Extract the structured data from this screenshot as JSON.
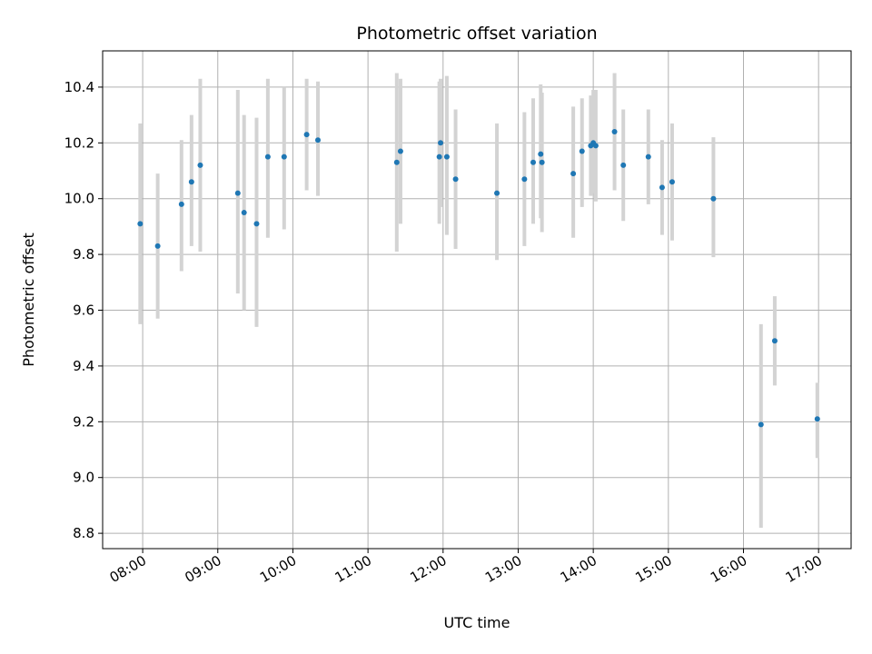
{
  "chart_data": {
    "type": "scatter",
    "title": "Photometric offset variation",
    "xlabel": "UTC time",
    "ylabel": "Photometric offset",
    "xlim": [
      "07:28",
      "17:26"
    ],
    "ylim": [
      8.745,
      10.53
    ],
    "x_ticks": [
      "08:00",
      "09:00",
      "10:00",
      "11:00",
      "12:00",
      "13:00",
      "14:00",
      "15:00",
      "16:00",
      "17:00"
    ],
    "y_ticks": [
      8.8,
      9.0,
      9.2,
      9.4,
      9.6,
      9.8,
      10.0,
      10.2,
      10.4
    ],
    "grid": true,
    "point_color": "#1f77b4",
    "error_bar_color": "#d3d3d3",
    "points": [
      {
        "x": "07:58",
        "y": 9.91,
        "low": 9.55,
        "high": 10.27
      },
      {
        "x": "08:12",
        "y": 9.83,
        "low": 9.57,
        "high": 10.09
      },
      {
        "x": "08:31",
        "y": 9.98,
        "low": 9.74,
        "high": 10.21
      },
      {
        "x": "08:39",
        "y": 10.06,
        "low": 9.83,
        "high": 10.3
      },
      {
        "x": "08:46",
        "y": 10.12,
        "low": 9.81,
        "high": 10.43
      },
      {
        "x": "09:16",
        "y": 10.02,
        "low": 9.66,
        "high": 10.39
      },
      {
        "x": "09:21",
        "y": 9.95,
        "low": 9.6,
        "high": 10.3
      },
      {
        "x": "09:31",
        "y": 9.91,
        "low": 9.54,
        "high": 10.29
      },
      {
        "x": "09:40",
        "y": 10.15,
        "low": 9.86,
        "high": 10.43
      },
      {
        "x": "09:53",
        "y": 10.15,
        "low": 9.89,
        "high": 10.4
      },
      {
        "x": "10:11",
        "y": 10.23,
        "low": 10.03,
        "high": 10.43
      },
      {
        "x": "10:20",
        "y": 10.21,
        "low": 10.01,
        "high": 10.42
      },
      {
        "x": "11:23",
        "y": 10.13,
        "low": 9.81,
        "high": 10.45
      },
      {
        "x": "11:26",
        "y": 10.17,
        "low": 9.91,
        "high": 10.43
      },
      {
        "x": "11:57",
        "y": 10.15,
        "low": 9.91,
        "high": 10.42
      },
      {
        "x": "11:58",
        "y": 10.2,
        "low": 9.97,
        "high": 10.43
      },
      {
        "x": "12:03",
        "y": 10.15,
        "low": 9.87,
        "high": 10.44
      },
      {
        "x": "12:10",
        "y": 10.07,
        "low": 9.82,
        "high": 10.32
      },
      {
        "x": "12:43",
        "y": 10.02,
        "low": 9.78,
        "high": 10.27
      },
      {
        "x": "13:05",
        "y": 10.07,
        "low": 9.83,
        "high": 10.31
      },
      {
        "x": "13:12",
        "y": 10.13,
        "low": 9.91,
        "high": 10.36
      },
      {
        "x": "13:18",
        "y": 10.16,
        "low": 9.93,
        "high": 10.41
      },
      {
        "x": "13:19",
        "y": 10.13,
        "low": 9.88,
        "high": 10.38
      },
      {
        "x": "13:44",
        "y": 10.09,
        "low": 9.86,
        "high": 10.33
      },
      {
        "x": "13:51",
        "y": 10.17,
        "low": 9.97,
        "high": 10.36
      },
      {
        "x": "13:58",
        "y": 10.19,
        "low": 10.01,
        "high": 10.37
      },
      {
        "x": "14:00",
        "y": 10.2,
        "low": 10.02,
        "high": 10.39
      },
      {
        "x": "14:02",
        "y": 10.19,
        "low": 9.99,
        "high": 10.39
      },
      {
        "x": "14:17",
        "y": 10.24,
        "low": 10.03,
        "high": 10.45
      },
      {
        "x": "14:24",
        "y": 10.12,
        "low": 9.92,
        "high": 10.32
      },
      {
        "x": "14:44",
        "y": 10.15,
        "low": 9.98,
        "high": 10.32
      },
      {
        "x": "14:55",
        "y": 10.04,
        "low": 9.87,
        "high": 10.21
      },
      {
        "x": "15:03",
        "y": 10.06,
        "low": 9.85,
        "high": 10.27
      },
      {
        "x": "15:36",
        "y": 10.0,
        "low": 9.79,
        "high": 10.22
      },
      {
        "x": "16:14",
        "y": 9.19,
        "low": 8.82,
        "high": 9.55
      },
      {
        "x": "16:25",
        "y": 9.49,
        "low": 9.33,
        "high": 9.65
      },
      {
        "x": "16:59",
        "y": 9.21,
        "low": 9.07,
        "high": 9.34
      }
    ]
  }
}
